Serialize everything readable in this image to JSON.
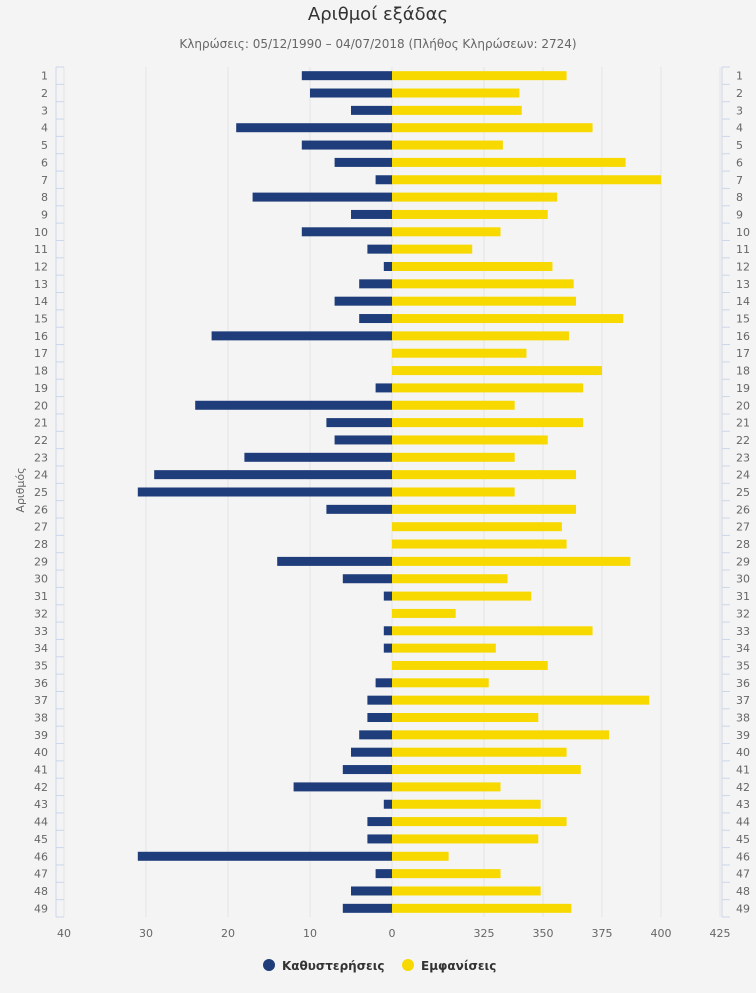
{
  "chart_data": {
    "type": "bar",
    "orientation": "horizontal",
    "title": "Αριθμοί εξάδας",
    "subtitle": "Κληρώσεις: 05/12/1990 – 04/07/2018 (Πλήθος Κληρώσεων: 2724)",
    "ylabel": "Αριθμός",
    "categories": [
      "1",
      "2",
      "3",
      "4",
      "5",
      "6",
      "7",
      "8",
      "9",
      "10",
      "11",
      "12",
      "13",
      "14",
      "15",
      "16",
      "17",
      "18",
      "19",
      "20",
      "21",
      "22",
      "23",
      "24",
      "25",
      "26",
      "27",
      "28",
      "29",
      "30",
      "31",
      "32",
      "33",
      "34",
      "35",
      "36",
      "37",
      "38",
      "39",
      "40",
      "41",
      "42",
      "43",
      "44",
      "45",
      "46",
      "47",
      "48",
      "49"
    ],
    "series": [
      {
        "name": "Καθυστερήσεις",
        "color": "#1f3d7a",
        "axis_ticks": [
          40,
          30,
          20,
          10,
          0
        ],
        "xlim": [
          0,
          40
        ],
        "values": [
          11,
          10,
          5,
          19,
          11,
          7,
          2,
          17,
          5,
          11,
          3,
          1,
          4,
          7,
          4,
          22,
          0,
          0,
          2,
          24,
          8,
          7,
          18,
          29,
          31,
          8,
          0,
          0,
          14,
          6,
          1,
          0,
          1,
          1,
          0,
          2,
          3,
          3,
          4,
          5,
          6,
          12,
          1,
          3,
          3,
          31,
          2,
          5,
          6
        ]
      },
      {
        "name": "Εμφανίσεις",
        "color": "#f7d900",
        "axis_ticks": [
          0,
          325,
          350,
          375,
          400,
          425
        ],
        "values": [
          360,
          340,
          341,
          371,
          333,
          385,
          400,
          356,
          352,
          332,
          320,
          354,
          363,
          364,
          384,
          361,
          343,
          375,
          367,
          338,
          367,
          352,
          338,
          364,
          338,
          364,
          358,
          360,
          387,
          335,
          345,
          313,
          371,
          330,
          352,
          327,
          395,
          348,
          378,
          360,
          366,
          332,
          349,
          360,
          348,
          310,
          332,
          349,
          362
        ]
      }
    ],
    "legend": {
      "position": "bottom-center"
    }
  }
}
